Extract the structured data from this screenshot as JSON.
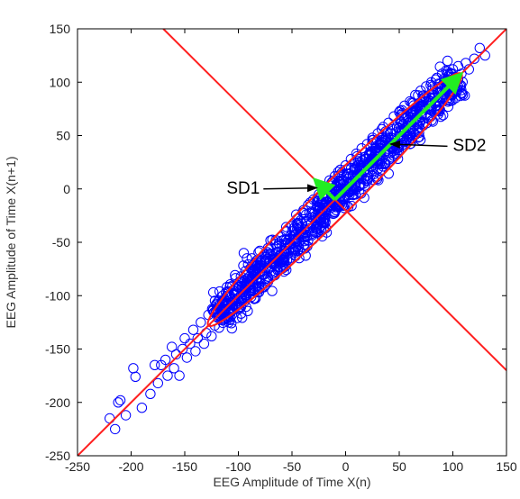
{
  "chart_data": {
    "type": "scatter",
    "title": "",
    "xlabel": "EEG Amplitude of Time X(n)",
    "ylabel": "EEG Amplitude of Time X(n+1)",
    "xlim": [
      -250,
      150
    ],
    "ylim": [
      -250,
      150
    ],
    "xticks": [
      -250,
      -200,
      -150,
      -100,
      -50,
      0,
      50,
      100,
      150
    ],
    "yticks": [
      -250,
      -200,
      -150,
      -100,
      -50,
      0,
      50,
      100,
      150
    ],
    "grid": false,
    "marker": "open-circle",
    "colors": {
      "points": "#0000ff",
      "lines": "#ff1f1f",
      "arrows": "#22ee22",
      "annotation": "#000000"
    },
    "points": [
      [
        -220,
        -215
      ],
      [
        -215,
        -225
      ],
      [
        -212,
        -200
      ],
      [
        -210,
        -198
      ],
      [
        -205,
        -212
      ],
      [
        -198,
        -168
      ],
      [
        -196,
        -176
      ],
      [
        -190,
        -205
      ],
      [
        -182,
        -192
      ],
      [
        -178,
        -165
      ],
      [
        -175,
        -182
      ],
      [
        -172,
        -165
      ],
      [
        -168,
        -160
      ],
      [
        -166,
        -175
      ],
      [
        -162,
        -148
      ],
      [
        -160,
        -168
      ],
      [
        -158,
        -155
      ],
      [
        -155,
        -175
      ],
      [
        -152,
        -150
      ],
      [
        -150,
        -140
      ],
      [
        -148,
        -158
      ],
      [
        -145,
        -145
      ],
      [
        -142,
        -132
      ],
      [
        -140,
        -152
      ],
      [
        -138,
        -140
      ],
      [
        -135,
        -125
      ],
      [
        -132,
        -145
      ],
      [
        -130,
        -135
      ],
      [
        -128,
        -118
      ],
      [
        -125,
        -138
      ],
      [
        -122,
        -128
      ],
      [
        -120,
        -112
      ],
      [
        -118,
        -130
      ],
      [
        -115,
        -105
      ],
      [
        -112,
        -122
      ],
      [
        -110,
        -98
      ],
      [
        -108,
        -115
      ],
      [
        -105,
        -95
      ],
      [
        -102,
        -108
      ],
      [
        -100,
        -88
      ],
      [
        -98,
        -102
      ],
      [
        -95,
        -60
      ],
      [
        -92,
        -65
      ],
      [
        -90,
        -95
      ],
      [
        -88,
        -75
      ],
      [
        -85,
        -72
      ],
      [
        -82,
        -88
      ],
      [
        -80,
        -58
      ],
      [
        -78,
        -80
      ],
      [
        -75,
        -62
      ],
      [
        -72,
        -75
      ],
      [
        -70,
        -55
      ],
      [
        -68,
        -70
      ],
      [
        -65,
        -48
      ],
      [
        -62,
        -63
      ],
      [
        -60,
        -45
      ],
      [
        -58,
        -58
      ],
      [
        -55,
        -40
      ],
      [
        -52,
        -52
      ],
      [
        -50,
        -35
      ],
      [
        -48,
        -48
      ],
      [
        -45,
        -28
      ],
      [
        -42,
        -42
      ],
      [
        -40,
        -22
      ],
      [
        -38,
        -38
      ],
      [
        -35,
        -15
      ],
      [
        -32,
        -32
      ],
      [
        -30,
        -10
      ],
      [
        -28,
        -25
      ],
      [
        -25,
        -5
      ],
      [
        -22,
        -20
      ],
      [
        -20,
        2
      ],
      [
        -18,
        -12
      ],
      [
        -15,
        8
      ],
      [
        -12,
        -5
      ],
      [
        -10,
        12
      ],
      [
        -8,
        2
      ],
      [
        -5,
        18
      ],
      [
        -2,
        8
      ],
      [
        0,
        22
      ],
      [
        2,
        14
      ],
      [
        5,
        28
      ],
      [
        8,
        18
      ],
      [
        10,
        33
      ],
      [
        12,
        22
      ],
      [
        15,
        38
      ],
      [
        18,
        28
      ],
      [
        20,
        42
      ],
      [
        22,
        32
      ],
      [
        25,
        48
      ],
      [
        28,
        38
      ],
      [
        30,
        52
      ],
      [
        32,
        42
      ],
      [
        35,
        58
      ],
      [
        38,
        48
      ],
      [
        40,
        62
      ],
      [
        42,
        52
      ],
      [
        45,
        68
      ],
      [
        48,
        58
      ],
      [
        50,
        72
      ],
      [
        52,
        62
      ],
      [
        55,
        78
      ],
      [
        58,
        68
      ],
      [
        60,
        82
      ],
      [
        62,
        72
      ],
      [
        65,
        88
      ],
      [
        68,
        78
      ],
      [
        70,
        92
      ],
      [
        72,
        82
      ],
      [
        75,
        96
      ],
      [
        78,
        86
      ],
      [
        80,
        100
      ],
      [
        82,
        90
      ],
      [
        85,
        104
      ],
      [
        88,
        94
      ],
      [
        90,
        108
      ],
      [
        92,
        98
      ],
      [
        95,
        110
      ],
      [
        98,
        102
      ],
      [
        100,
        112
      ],
      [
        102,
        104
      ],
      [
        105,
        115
      ],
      [
        108,
        108
      ],
      [
        112,
        118
      ],
      [
        115,
        112
      ],
      [
        120,
        122
      ],
      [
        125,
        132
      ],
      [
        130,
        125
      ],
      [
        108,
        90
      ],
      [
        95,
        120
      ]
    ],
    "reference_lines": [
      {
        "name": "identity-line",
        "from": [
          -250,
          -250
        ],
        "to": [
          150,
          150
        ]
      },
      {
        "name": "perpendicular-line",
        "from": [
          -170,
          150
        ],
        "to": [
          150,
          -170
        ]
      }
    ],
    "ellipse": {
      "center": [
        -10,
        -10
      ],
      "end1": [
        -128,
        -128
      ],
      "end2": [
        108,
        108
      ],
      "semi_minor": 16
    },
    "arrows": [
      {
        "name": "sd2-arrow",
        "from": [
          -10,
          -10
        ],
        "to": [
          105,
          105
        ]
      },
      {
        "name": "sd1-arrow",
        "from": [
          -10,
          -10
        ],
        "to": [
          -26,
          6
        ]
      }
    ],
    "annotations": [
      {
        "label": "SD1",
        "text_at": [
          -80,
          0
        ],
        "arrow_to": [
          -27,
          1
        ]
      },
      {
        "label": "SD2",
        "text_at": [
          100,
          40
        ],
        "arrow_to": [
          42,
          42
        ]
      }
    ]
  }
}
